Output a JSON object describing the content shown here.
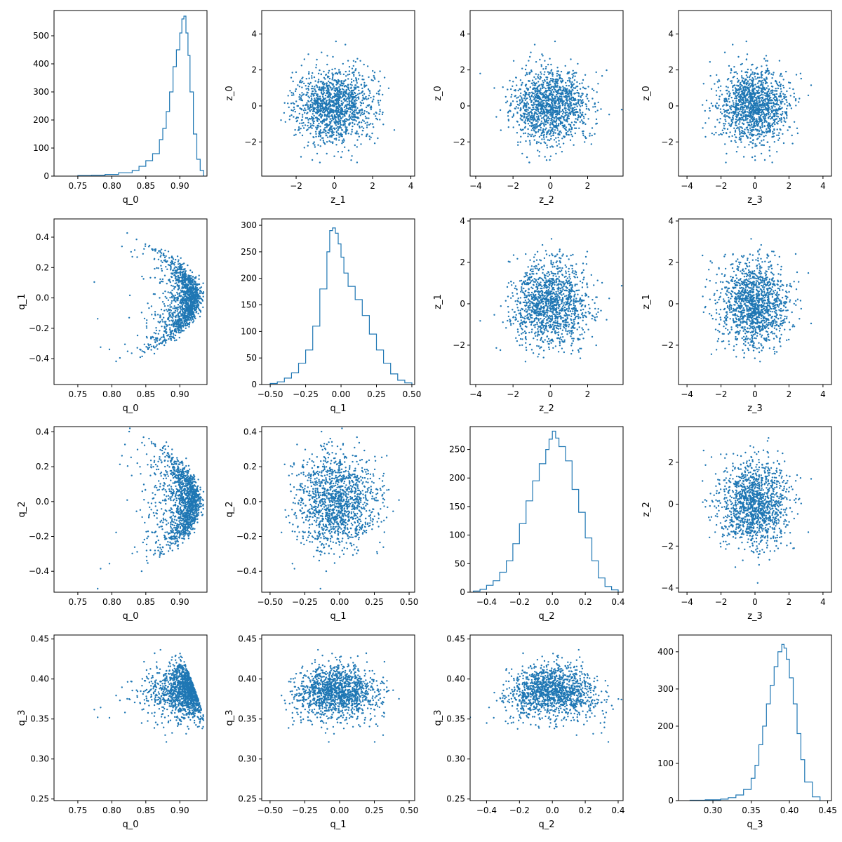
{
  "figure": {
    "rows": 4,
    "cols": 4,
    "series_color": "#1f77b4",
    "marker": "dot",
    "variables": {
      "q_0": {
        "mean": 0.892,
        "sd": 0.027
      },
      "q_1": {
        "mean": -0.02,
        "sd": 0.15
      },
      "q_2": {
        "mean": 0.0,
        "sd": 0.14
      },
      "q_3": {
        "mean": 0.388,
        "sd": 0.018
      },
      "z_0": {
        "mean": 0.0,
        "sd": 1.0
      },
      "z_1": {
        "mean": 0.0,
        "sd": 1.0
      },
      "z_2": {
        "mean": 0.0,
        "sd": 1.0
      },
      "z_3": {
        "mean": 0.0,
        "sd": 1.0
      }
    }
  },
  "chart_data": [
    {
      "type": "histogram",
      "row": 0,
      "col": 0,
      "xlabel": "q_0",
      "ylabel": "",
      "xlim": [
        0.715,
        0.94
      ],
      "ylim": [
        0,
        590
      ],
      "xticks": [
        0.75,
        0.8,
        0.85,
        0.9
      ],
      "yticks": [
        0,
        100,
        200,
        300,
        400,
        500
      ],
      "xtick_labels": [
        "0.75",
        "0.80",
        "0.85",
        "0.90"
      ],
      "ytick_labels": [
        "0",
        "100",
        "200",
        "300",
        "400",
        "500"
      ],
      "bins": {
        "x": [
          0.75,
          0.77,
          0.79,
          0.81,
          0.83,
          0.84,
          0.85,
          0.86,
          0.87,
          0.875,
          0.88,
          0.885,
          0.89,
          0.895,
          0.9,
          0.903,
          0.906,
          0.909,
          0.912,
          0.915,
          0.92,
          0.925,
          0.93,
          0.935
        ],
        "y": [
          2,
          3,
          6,
          12,
          20,
          35,
          55,
          80,
          130,
          170,
          230,
          300,
          390,
          450,
          510,
          560,
          570,
          510,
          430,
          300,
          150,
          60,
          20,
          0
        ]
      }
    },
    {
      "type": "scatter",
      "row": 0,
      "col": 1,
      "xvar": "z_1",
      "yvar": "z_0",
      "xlabel": "z_1",
      "ylabel": "z_0",
      "xlim": [
        -3.8,
        4.2
      ],
      "ylim": [
        -3.9,
        5.3
      ],
      "xticks": [
        -2,
        0,
        2,
        4
      ],
      "yticks": [
        -2,
        0,
        2,
        4
      ],
      "xtick_labels": [
        "−2",
        "0",
        "2",
        "4"
      ],
      "ytick_labels": [
        "−2",
        "0",
        "2",
        "4"
      ]
    },
    {
      "type": "scatter",
      "row": 0,
      "col": 2,
      "xvar": "z_2",
      "yvar": "z_0",
      "xlabel": "z_2",
      "ylabel": "z_0",
      "xlim": [
        -4.3,
        3.9
      ],
      "ylim": [
        -3.9,
        5.3
      ],
      "xticks": [
        -4,
        -2,
        0,
        2
      ],
      "yticks": [
        -2,
        0,
        2,
        4
      ],
      "xtick_labels": [
        "−4",
        "−2",
        "0",
        "2"
      ],
      "ytick_labels": [
        "−2",
        "0",
        "2",
        "4"
      ]
    },
    {
      "type": "scatter",
      "row": 0,
      "col": 3,
      "xvar": "z_3",
      "yvar": "z_0",
      "xlabel": "z_3",
      "ylabel": "z_0",
      "xlim": [
        -4.5,
        4.5
      ],
      "ylim": [
        -3.9,
        5.3
      ],
      "xticks": [
        -4,
        -2,
        0,
        2,
        4
      ],
      "yticks": [
        -2,
        0,
        2,
        4
      ],
      "xtick_labels": [
        "−4",
        "−2",
        "0",
        "2",
        "4"
      ],
      "ytick_labels": [
        "−2",
        "0",
        "2",
        "4"
      ]
    },
    {
      "type": "scatter",
      "row": 1,
      "col": 0,
      "xvar": "q_0",
      "yvar": "q_1",
      "xlabel": "q_0",
      "ylabel": "q_1",
      "xlim": [
        0.715,
        0.94
      ],
      "ylim": [
        -0.57,
        0.52
      ],
      "xticks": [
        0.75,
        0.8,
        0.85,
        0.9
      ],
      "yticks": [
        -0.4,
        -0.2,
        0.0,
        0.2,
        0.4
      ],
      "xtick_labels": [
        "0.75",
        "0.80",
        "0.85",
        "0.90"
      ],
      "ytick_labels": [
        "−0.4",
        "−0.2",
        "0.0",
        "0.2",
        "0.4"
      ]
    },
    {
      "type": "histogram",
      "row": 1,
      "col": 1,
      "xlabel": "q_1",
      "ylabel": "",
      "xlim": [
        -0.56,
        0.52
      ],
      "ylim": [
        0,
        312
      ],
      "xticks": [
        -0.5,
        -0.25,
        0.0,
        0.25,
        0.5
      ],
      "yticks": [
        0,
        50,
        100,
        150,
        200,
        250,
        300
      ],
      "xtick_labels": [
        "−0.50",
        "−0.25",
        "0.00",
        "0.25",
        "0.50"
      ],
      "ytick_labels": [
        "0",
        "50",
        "100",
        "150",
        "200",
        "250",
        "300"
      ],
      "bins": {
        "x": [
          -0.5,
          -0.45,
          -0.4,
          -0.35,
          -0.3,
          -0.25,
          -0.2,
          -0.15,
          -0.1,
          -0.08,
          -0.06,
          -0.04,
          -0.02,
          0.0,
          0.02,
          0.05,
          0.1,
          0.15,
          0.2,
          0.25,
          0.3,
          0.35,
          0.4,
          0.45,
          0.5
        ],
        "y": [
          2,
          5,
          12,
          22,
          40,
          65,
          110,
          180,
          250,
          290,
          295,
          285,
          265,
          240,
          210,
          185,
          160,
          130,
          95,
          65,
          40,
          20,
          8,
          3,
          0
        ]
      }
    },
    {
      "type": "scatter",
      "row": 1,
      "col": 2,
      "xvar": "z_2",
      "yvar": "z_1",
      "xlabel": "z_2",
      "ylabel": "z_1",
      "xlim": [
        -4.3,
        3.9
      ],
      "ylim": [
        -3.9,
        4.1
      ],
      "xticks": [
        -4,
        -2,
        0,
        2
      ],
      "yticks": [
        -2,
        0,
        2,
        4
      ],
      "xtick_labels": [
        "−4",
        "−2",
        "0",
        "2"
      ],
      "ytick_labels": [
        "−2",
        "0",
        "2",
        "4"
      ]
    },
    {
      "type": "scatter",
      "row": 1,
      "col": 3,
      "xvar": "z_3",
      "yvar": "z_1",
      "xlabel": "z_3",
      "ylabel": "z_1",
      "xlim": [
        -4.5,
        4.5
      ],
      "ylim": [
        -3.9,
        4.1
      ],
      "xticks": [
        -4,
        -2,
        0,
        2,
        4
      ],
      "yticks": [
        -2,
        0,
        2,
        4
      ],
      "xtick_labels": [
        "−4",
        "−2",
        "0",
        "2",
        "4"
      ],
      "ytick_labels": [
        "−2",
        "0",
        "2",
        "4"
      ]
    },
    {
      "type": "scatter",
      "row": 2,
      "col": 0,
      "xvar": "q_0",
      "yvar": "q_2",
      "xlabel": "q_0",
      "ylabel": "q_2",
      "xlim": [
        0.715,
        0.94
      ],
      "ylim": [
        -0.52,
        0.43
      ],
      "xticks": [
        0.75,
        0.8,
        0.85,
        0.9
      ],
      "yticks": [
        -0.4,
        -0.2,
        0.0,
        0.2,
        0.4
      ],
      "xtick_labels": [
        "0.75",
        "0.80",
        "0.85",
        "0.90"
      ],
      "ytick_labels": [
        "−0.4",
        "−0.2",
        "0.0",
        "0.2",
        "0.4"
      ]
    },
    {
      "type": "scatter",
      "row": 2,
      "col": 1,
      "xvar": "q_1",
      "yvar": "q_2",
      "xlabel": "q_1",
      "ylabel": "q_2",
      "xlim": [
        -0.56,
        0.54
      ],
      "ylim": [
        -0.52,
        0.43
      ],
      "xticks": [
        -0.5,
        -0.25,
        0.0,
        0.25,
        0.5
      ],
      "yticks": [
        -0.4,
        -0.2,
        0.0,
        0.2,
        0.4
      ],
      "xtick_labels": [
        "−0.50",
        "−0.25",
        "0.00",
        "0.25",
        "0.50"
      ],
      "ytick_labels": [
        "−0.4",
        "−0.2",
        "0.0",
        "0.2",
        "0.4"
      ]
    },
    {
      "type": "histogram",
      "row": 2,
      "col": 2,
      "xlabel": "q_2",
      "ylabel": "",
      "xlim": [
        -0.5,
        0.43
      ],
      "ylim": [
        0,
        290
      ],
      "xticks": [
        -0.4,
        -0.2,
        0.0,
        0.2,
        0.4
      ],
      "yticks": [
        0,
        50,
        100,
        150,
        200,
        250
      ],
      "xtick_labels": [
        "−0.4",
        "−0.2",
        "0.0",
        "0.2",
        "0.4"
      ],
      "ytick_labels": [
        "0",
        "50",
        "100",
        "150",
        "200",
        "250"
      ],
      "bins": {
        "x": [
          -0.48,
          -0.44,
          -0.4,
          -0.36,
          -0.32,
          -0.28,
          -0.24,
          -0.2,
          -0.16,
          -0.12,
          -0.08,
          -0.04,
          -0.02,
          0.0,
          0.02,
          0.04,
          0.08,
          0.12,
          0.16,
          0.2,
          0.24,
          0.28,
          0.32,
          0.36,
          0.4
        ],
        "y": [
          2,
          5,
          12,
          20,
          35,
          55,
          85,
          120,
          160,
          195,
          225,
          250,
          268,
          282,
          270,
          255,
          230,
          180,
          140,
          95,
          55,
          25,
          10,
          4,
          0
        ]
      }
    },
    {
      "type": "scatter",
      "row": 2,
      "col": 3,
      "xvar": "z_3",
      "yvar": "z_2",
      "xlabel": "z_3",
      "ylabel": "z_2",
      "xlim": [
        -4.5,
        4.5
      ],
      "ylim": [
        -4.2,
        3.7
      ],
      "xticks": [
        -4,
        -2,
        0,
        2,
        4
      ],
      "yticks": [
        -4,
        -2,
        0,
        2
      ],
      "xtick_labels": [
        "−4",
        "−2",
        "0",
        "2",
        "4"
      ],
      "ytick_labels": [
        "−4",
        "−2",
        "0",
        "2"
      ]
    },
    {
      "type": "scatter",
      "row": 3,
      "col": 0,
      "xvar": "q_0",
      "yvar": "q_3",
      "xlabel": "q_0",
      "ylabel": "q_3",
      "xlim": [
        0.715,
        0.94
      ],
      "ylim": [
        0.248,
        0.455
      ],
      "xticks": [
        0.75,
        0.8,
        0.85,
        0.9
      ],
      "yticks": [
        0.25,
        0.3,
        0.35,
        0.4,
        0.45
      ],
      "xtick_labels": [
        "0.75",
        "0.80",
        "0.85",
        "0.90"
      ],
      "ytick_labels": [
        "0.25",
        "0.30",
        "0.35",
        "0.40",
        "0.45"
      ]
    },
    {
      "type": "scatter",
      "row": 3,
      "col": 1,
      "xvar": "q_1",
      "yvar": "q_3",
      "xlabel": "q_1",
      "ylabel": "q_3",
      "xlim": [
        -0.56,
        0.54
      ],
      "ylim": [
        0.248,
        0.455
      ],
      "xticks": [
        -0.5,
        -0.25,
        0.0,
        0.25,
        0.5
      ],
      "yticks": [
        0.25,
        0.3,
        0.35,
        0.4,
        0.45
      ],
      "xtick_labels": [
        "−0.50",
        "−0.25",
        "0.00",
        "0.25",
        "0.50"
      ],
      "ytick_labels": [
        "0.25",
        "0.30",
        "0.35",
        "0.40",
        "0.45"
      ]
    },
    {
      "type": "scatter",
      "row": 3,
      "col": 2,
      "xvar": "q_2",
      "yvar": "q_3",
      "xlabel": "q_2",
      "ylabel": "q_3",
      "xlim": [
        -0.5,
        0.43
      ],
      "ylim": [
        0.248,
        0.455
      ],
      "xticks": [
        -0.4,
        -0.2,
        0.0,
        0.2,
        0.4
      ],
      "yticks": [
        0.25,
        0.3,
        0.35,
        0.4,
        0.45
      ],
      "xtick_labels": [
        "−0.4",
        "−0.2",
        "0.0",
        "0.2",
        "0.4"
      ],
      "ytick_labels": [
        "0.25",
        "0.30",
        "0.35",
        "0.40",
        "0.45"
      ]
    },
    {
      "type": "histogram",
      "row": 3,
      "col": 3,
      "xlabel": "q_3",
      "ylabel": "",
      "xlim": [
        0.255,
        0.455
      ],
      "ylim": [
        0,
        445
      ],
      "xticks": [
        0.3,
        0.35,
        0.4,
        0.45
      ],
      "yticks": [
        0,
        100,
        200,
        300,
        400
      ],
      "xtick_labels": [
        "0.30",
        "0.35",
        "0.40",
        "0.45"
      ],
      "ytick_labels": [
        "0",
        "100",
        "200",
        "300",
        "400"
      ],
      "bins": {
        "x": [
          0.27,
          0.29,
          0.31,
          0.32,
          0.33,
          0.34,
          0.35,
          0.355,
          0.36,
          0.365,
          0.37,
          0.375,
          0.38,
          0.385,
          0.39,
          0.393,
          0.396,
          0.4,
          0.405,
          0.41,
          0.415,
          0.42,
          0.43,
          0.44
        ],
        "y": [
          1,
          2,
          4,
          8,
          15,
          30,
          60,
          95,
          150,
          200,
          260,
          310,
          360,
          400,
          420,
          410,
          380,
          330,
          260,
          180,
          110,
          50,
          10,
          0
        ]
      }
    }
  ]
}
